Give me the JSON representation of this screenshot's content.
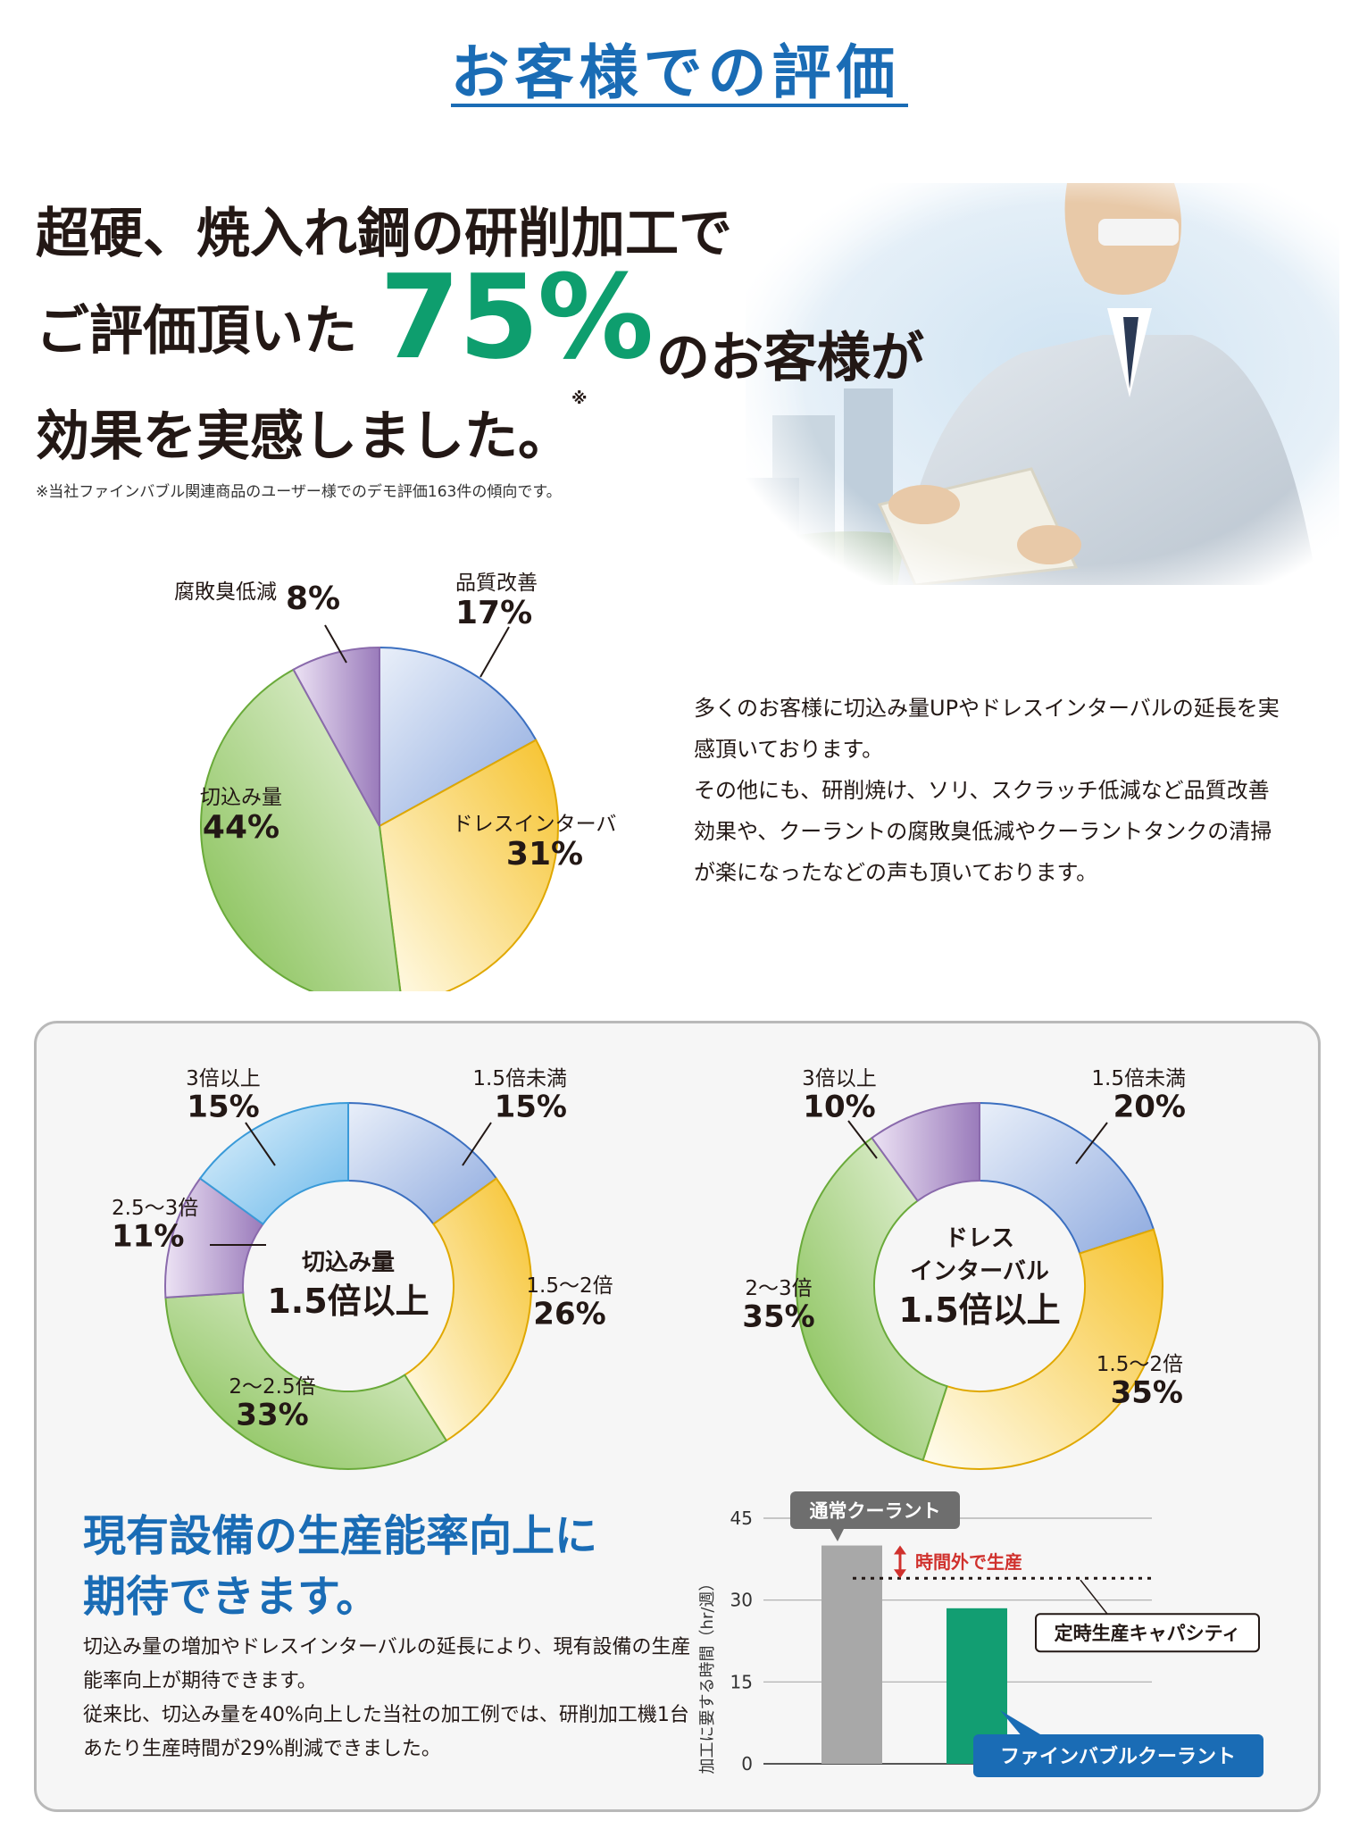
{
  "header": {
    "title": "お客様での評価"
  },
  "hero": {
    "line1": "超硬、焼入れ鋼の研削加工で",
    "line2_a": "ご評価頂いた",
    "big_value": "75%",
    "line2_b": "のお客様が",
    "line3": "効果を実感しました。",
    "mark": "※",
    "footnote": "※当社ファインバブル関連商品のユーザー様でのデモ評価163件の傾向です。"
  },
  "description": {
    "p1": "多くのお客様に切込み量UPやドレスインターバルの延長を実感頂いております。",
    "p2": "その他にも、研削焼け、ソリ、スクラッチ低減など品質改善効果や、クーラントの腐敗臭低減やクーラントタンクの清掃が楽になったなどの声も頂いております。"
  },
  "productivity": {
    "heading_line1": "現有設備の生産能率向上に",
    "heading_line2": "期待できます。",
    "text_p1": "切込み量の増加やドレスインターバルの延長により、現有設備の生産能率向上が期待できます。",
    "text_p2": "従来比、切込み量を40%向上した当社の加工例では、研削加工機1台あたり生産時間が29%削減できました。"
  },
  "colors": {
    "blue": "#1a6cb5",
    "green_accent": "#0e9e6e",
    "slice_blue": "#9bb4e2",
    "slice_yellow": "#f7c948",
    "slice_green": "#8fc760",
    "slice_purple": "#a98ac6",
    "slice_lightblue": "#8ecbef",
    "bar_gray": "#a8a8a8",
    "bar_green": "#129e72",
    "arrow_red": "#d0312d"
  },
  "chart_data": [
    {
      "type": "pie",
      "labels": [
        "品質改善",
        "ドレスインターバル",
        "切込み量",
        "腐敗臭低減"
      ],
      "values": [
        17,
        31,
        44,
        8
      ],
      "value_labels": [
        "17%",
        "31%",
        "44%",
        "8%"
      ]
    },
    {
      "type": "pie",
      "donut": true,
      "center_label": [
        "切込み量",
        "1.5倍以上"
      ],
      "labels": [
        "1.5倍未満",
        "1.5～2倍",
        "2～2.5倍",
        "2.5～3倍",
        "3倍以上"
      ],
      "values": [
        15,
        26,
        33,
        11,
        15
      ],
      "value_labels": [
        "15%",
        "26%",
        "33%",
        "11%",
        "15%"
      ]
    },
    {
      "type": "pie",
      "donut": true,
      "center_label": [
        "ドレス",
        "インターバル",
        "1.5倍以上"
      ],
      "labels": [
        "1.5倍未満",
        "1.5～2倍",
        "2～3倍",
        "3倍以上"
      ],
      "values": [
        20,
        35,
        35,
        10
      ],
      "value_labels": [
        "20%",
        "35%",
        "35%",
        "10%"
      ]
    },
    {
      "type": "bar",
      "categories": [
        "通常クーラント",
        "ファインバブルクーラント"
      ],
      "values": [
        40,
        28.5
      ],
      "ylabel": "加工に要する時間（hr/週）",
      "yticks": [
        0,
        15,
        30,
        45
      ],
      "ylim": [
        0,
        45
      ],
      "grid": true,
      "reference_line": {
        "value": 34,
        "label": "定時生産キャパシティ"
      },
      "annotation": "時間外で生産"
    }
  ]
}
